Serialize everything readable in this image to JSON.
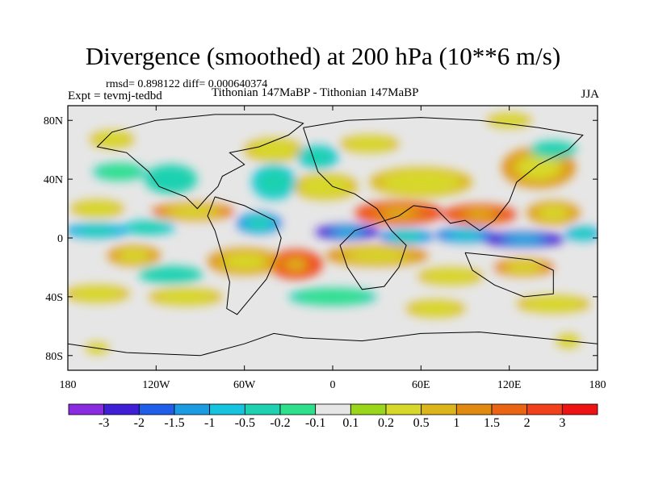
{
  "figure": {
    "title": "Divergence (smoothed) at 200 hPa (10**6 m/s)",
    "stats": "rmsd= 0.898122 diff= 0.000640374",
    "experiment": "Expt = tevmj-tedbd",
    "subtitle": "Tithonian 147MaBP - Tithonian 147MaBP",
    "season": "JJA"
  },
  "axes": {
    "y_ticks": [
      {
        "value": 80,
        "label": "80N"
      },
      {
        "value": 40,
        "label": "40N"
      },
      {
        "value": 0,
        "label": "0"
      },
      {
        "value": -40,
        "label": "40S"
      },
      {
        "value": -80,
        "label": "80S"
      }
    ],
    "x_ticks": [
      {
        "value": -180,
        "label": "180"
      },
      {
        "value": -120,
        "label": "120W"
      },
      {
        "value": -60,
        "label": "60W"
      },
      {
        "value": 0,
        "label": "0"
      },
      {
        "value": 60,
        "label": "60E"
      },
      {
        "value": 120,
        "label": "120E"
      },
      {
        "value": 180,
        "label": "180"
      }
    ],
    "lon_range": [
      -180,
      180
    ],
    "lat_range": [
      -90,
      90
    ]
  },
  "colorbar": {
    "colors": [
      "#8a2be2",
      "#3f1fd6",
      "#1e5ee8",
      "#1a9be2",
      "#16c4e0",
      "#1ed1b0",
      "#2ee08c",
      "#e6e6e6",
      "#9ad61a",
      "#d7d82a",
      "#dcb51a",
      "#e08a12",
      "#ea6414",
      "#f2401a",
      "#ee1212"
    ],
    "labels": [
      "-3",
      "-2",
      "-1.5",
      "-1",
      "-0.5",
      "-0.2",
      "-0.1",
      "0.1",
      "0.2",
      "0.5",
      "1",
      "1.5",
      "2",
      "3"
    ],
    "neutral_index": 7
  },
  "field_blobs": [
    {
      "lon": -160,
      "lat": 5,
      "rlon": 22,
      "rlat": 5,
      "v": -1.4
    },
    {
      "lon": -125,
      "lat": 7,
      "rlon": 18,
      "rlat": 5,
      "v": -0.8
    },
    {
      "lon": -50,
      "lat": 10,
      "rlon": 15,
      "rlat": 7,
      "v": -1.6
    },
    {
      "lon": 10,
      "lat": 4,
      "rlon": 22,
      "rlat": 5,
      "v": -2.8
    },
    {
      "lon": 50,
      "lat": 1,
      "rlon": 18,
      "rlat": 5,
      "v": -1.6
    },
    {
      "lon": 90,
      "lat": 2,
      "rlon": 20,
      "rlat": 5,
      "v": -2.0
    },
    {
      "lon": 130,
      "lat": -1,
      "rlon": 28,
      "rlat": 5,
      "v": -3.0
    },
    {
      "lon": 170,
      "lat": 3,
      "rlon": 12,
      "rlat": 5,
      "v": -1.2
    },
    {
      "lon": -95,
      "lat": 18,
      "rlon": 28,
      "rlat": 6,
      "v": 1.5
    },
    {
      "lon": -160,
      "lat": 20,
      "rlon": 18,
      "rlat": 6,
      "v": 0.8
    },
    {
      "lon": 45,
      "lat": 17,
      "rlon": 30,
      "rlat": 8,
      "v": 2.7
    },
    {
      "lon": 100,
      "lat": 16,
      "rlon": 25,
      "rlat": 7,
      "v": 2.5
    },
    {
      "lon": 150,
      "lat": 17,
      "rlon": 18,
      "rlat": 8,
      "v": 1.0
    },
    {
      "lon": -25,
      "lat": -18,
      "rlon": 18,
      "rlat": 10,
      "v": 2.8
    },
    {
      "lon": -60,
      "lat": -16,
      "rlon": 25,
      "rlat": 9,
      "v": 1.3
    },
    {
      "lon": -135,
      "lat": -12,
      "rlon": 18,
      "rlat": 7,
      "v": 1.2
    },
    {
      "lon": 30,
      "lat": -12,
      "rlon": 35,
      "rlat": 7,
      "v": 1.0
    },
    {
      "lon": 130,
      "lat": -20,
      "rlon": 20,
      "rlat": 6,
      "v": 1.5
    },
    {
      "lon": 80,
      "lat": -26,
      "rlon": 22,
      "rlat": 6,
      "v": 0.8
    },
    {
      "lon": -5,
      "lat": 35,
      "rlon": 22,
      "rlat": 9,
      "v": 0.6
    },
    {
      "lon": 60,
      "lat": 38,
      "rlon": 35,
      "rlat": 10,
      "v": 0.8
    },
    {
      "lon": 140,
      "lat": 48,
      "rlon": 25,
      "rlat": 14,
      "v": 1.0
    },
    {
      "lon": -40,
      "lat": 60,
      "rlon": 20,
      "rlat": 8,
      "v": 0.7
    },
    {
      "lon": 25,
      "lat": 64,
      "rlon": 20,
      "rlat": 6,
      "v": 0.6
    },
    {
      "lon": -150,
      "lat": 67,
      "rlon": 15,
      "rlat": 6,
      "v": 0.7
    },
    {
      "lon": 120,
      "lat": 80,
      "rlon": 15,
      "rlat": 5,
      "v": 0.6
    },
    {
      "lon": -40,
      "lat": 38,
      "rlon": 15,
      "rlat": 12,
      "v": -0.8
    },
    {
      "lon": -110,
      "lat": 40,
      "rlon": 18,
      "rlat": 10,
      "v": -0.5
    },
    {
      "lon": -10,
      "lat": 55,
      "rlon": 14,
      "rlat": 8,
      "v": -0.6
    },
    {
      "lon": 150,
      "lat": 60,
      "rlon": 16,
      "rlat": 6,
      "v": -0.5
    },
    {
      "lon": -145,
      "lat": 45,
      "rlon": 18,
      "rlat": 6,
      "v": -0.3
    },
    {
      "lon": -160,
      "lat": -38,
      "rlon": 22,
      "rlat": 6,
      "v": 0.8
    },
    {
      "lon": -100,
      "lat": -40,
      "rlon": 25,
      "rlat": 6,
      "v": 0.6
    },
    {
      "lon": 70,
      "lat": -48,
      "rlon": 20,
      "rlat": 6,
      "v": 0.8
    },
    {
      "lon": 150,
      "lat": -45,
      "rlon": 25,
      "rlat": 6,
      "v": 0.7
    },
    {
      "lon": -110,
      "lat": -25,
      "rlon": 22,
      "rlat": 6,
      "v": -0.5
    },
    {
      "lon": 0,
      "lat": -40,
      "rlon": 30,
      "rlat": 6,
      "v": -0.4
    },
    {
      "lon": 160,
      "lat": -70,
      "rlon": 8,
      "rlat": 5,
      "v": 0.6
    },
    {
      "lon": -160,
      "lat": -75,
      "rlon": 8,
      "rlat": 4,
      "v": 0.6
    }
  ],
  "coastlines": [
    [
      [
        -120,
        80
      ],
      [
        -80,
        84
      ],
      [
        -40,
        84
      ],
      [
        -20,
        78
      ],
      [
        -30,
        70
      ],
      [
        -50,
        62
      ],
      [
        -70,
        58
      ],
      [
        -60,
        50
      ],
      [
        -75,
        42
      ],
      [
        -78,
        35
      ],
      [
        -85,
        28
      ],
      [
        -92,
        20
      ],
      [
        -100,
        28
      ],
      [
        -118,
        35
      ],
      [
        -125,
        45
      ],
      [
        -140,
        58
      ],
      [
        -160,
        62
      ],
      [
        -150,
        72
      ],
      [
        -120,
        80
      ]
    ],
    [
      [
        -80,
        28
      ],
      [
        -60,
        22
      ],
      [
        -40,
        12
      ],
      [
        -35,
        0
      ],
      [
        -38,
        -12
      ],
      [
        -45,
        -28
      ],
      [
        -55,
        -40
      ],
      [
        -65,
        -52
      ],
      [
        -72,
        -48
      ],
      [
        -70,
        -30
      ],
      [
        -75,
        -12
      ],
      [
        -80,
        5
      ],
      [
        -85,
        15
      ],
      [
        -80,
        28
      ]
    ],
    [
      [
        -20,
        75
      ],
      [
        10,
        80
      ],
      [
        60,
        82
      ],
      [
        100,
        80
      ],
      [
        140,
        75
      ],
      [
        170,
        70
      ],
      [
        160,
        60
      ],
      [
        140,
        50
      ],
      [
        125,
        38
      ],
      [
        120,
        25
      ],
      [
        110,
        12
      ],
      [
        100,
        5
      ],
      [
        90,
        12
      ],
      [
        80,
        10
      ],
      [
        70,
        20
      ],
      [
        55,
        22
      ],
      [
        45,
        15
      ],
      [
        30,
        10
      ],
      [
        15,
        5
      ],
      [
        5,
        -5
      ],
      [
        10,
        -20
      ],
      [
        20,
        -35
      ],
      [
        35,
        -33
      ],
      [
        45,
        -20
      ],
      [
        50,
        -5
      ],
      [
        40,
        5
      ],
      [
        30,
        20
      ],
      [
        15,
        30
      ],
      [
        0,
        35
      ],
      [
        -10,
        45
      ],
      [
        -15,
        60
      ],
      [
        -20,
        75
      ]
    ],
    [
      [
        90,
        -10
      ],
      [
        110,
        -12
      ],
      [
        135,
        -15
      ],
      [
        150,
        -22
      ],
      [
        150,
        -38
      ],
      [
        130,
        -40
      ],
      [
        110,
        -32
      ],
      [
        95,
        -22
      ],
      [
        90,
        -10
      ]
    ],
    [
      [
        -180,
        -72
      ],
      [
        -140,
        -78
      ],
      [
        -90,
        -80
      ],
      [
        -60,
        -72
      ],
      [
        -40,
        -65
      ],
      [
        -20,
        -68
      ],
      [
        20,
        -70
      ],
      [
        60,
        -65
      ],
      [
        100,
        -64
      ],
      [
        140,
        -68
      ],
      [
        180,
        -72
      ]
    ]
  ]
}
